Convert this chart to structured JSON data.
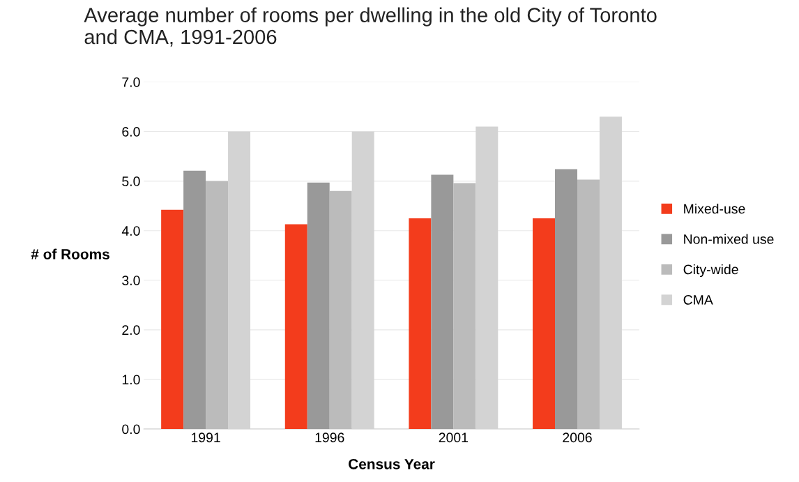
{
  "chart_data": {
    "type": "bar",
    "title": "Average number of rooms per dwelling in the old City of Toronto\nand CMA, 1991-2006",
    "xlabel": "Census Year",
    "ylabel": "# of Rooms",
    "categories": [
      "1991",
      "1996",
      "2001",
      "2006"
    ],
    "series": [
      {
        "name": "Mixed-use",
        "color": "#f33c1c",
        "values": [
          4.42,
          4.13,
          4.25,
          4.25
        ]
      },
      {
        "name": "Non-mixed use",
        "color": "#999999",
        "values": [
          5.21,
          4.97,
          5.13,
          5.24
        ]
      },
      {
        "name": "City-wide",
        "color": "#bbbbbb",
        "values": [
          5.0,
          4.8,
          4.96,
          5.03
        ]
      },
      {
        "name": "CMA",
        "color": "#d3d3d3",
        "values": [
          6.0,
          6.0,
          6.1,
          6.3
        ]
      }
    ],
    "ylim": [
      0,
      7
    ],
    "yticks": [
      {
        "value": 0,
        "label": "0.0"
      },
      {
        "value": 1,
        "label": "1.0"
      },
      {
        "value": 2,
        "label": "2.0"
      },
      {
        "value": 3,
        "label": "3.0"
      },
      {
        "value": 4,
        "label": "4.0"
      },
      {
        "value": 5,
        "label": "5.0"
      },
      {
        "value": 6,
        "label": "6.0"
      },
      {
        "value": 7,
        "label": "7.0"
      }
    ],
    "grid": "y",
    "legend": "right"
  }
}
